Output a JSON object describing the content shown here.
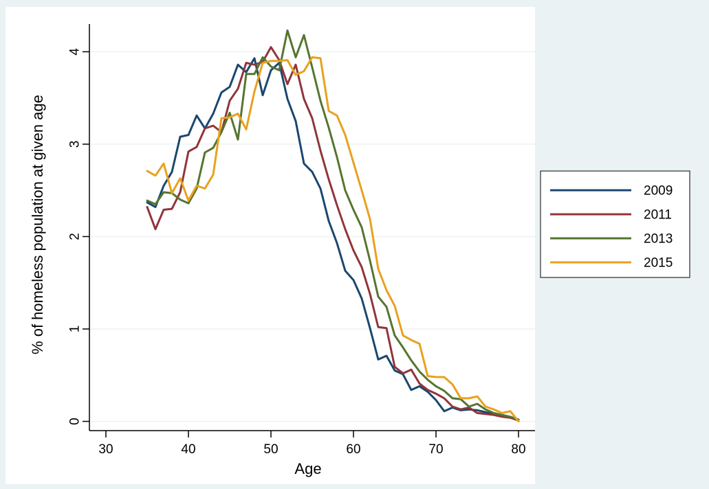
{
  "chart_data": {
    "type": "line",
    "title": "",
    "xlabel": "Age",
    "ylabel": "% of homeless population at given age",
    "xlim": [
      28,
      82
    ],
    "ylim": [
      -0.1,
      4.3
    ],
    "xticks": [
      30,
      40,
      50,
      60,
      70,
      80
    ],
    "yticks": [
      0,
      1,
      2,
      3,
      4
    ],
    "x_tick_labels": [
      "30",
      "40",
      "50",
      "60",
      "70",
      "80"
    ],
    "y_tick_labels": [
      "0",
      "1",
      "2",
      "3",
      "4"
    ],
    "grid": "horizontal",
    "legend_position": "right",
    "x": [
      35,
      36,
      37,
      38,
      39,
      40,
      41,
      42,
      43,
      44,
      45,
      46,
      47,
      48,
      49,
      50,
      51,
      52,
      53,
      54,
      55,
      56,
      57,
      58,
      59,
      60,
      61,
      62,
      63,
      64,
      65,
      66,
      67,
      68,
      69,
      70,
      71,
      72,
      73,
      74,
      75,
      76,
      77,
      78,
      79,
      80
    ],
    "series": [
      {
        "name": "2009",
        "color": "#1a476f",
        "values": [
          2.37,
          2.32,
          2.55,
          2.7,
          3.08,
          3.1,
          3.31,
          3.17,
          3.33,
          3.56,
          3.62,
          3.86,
          3.78,
          3.93,
          3.53,
          3.8,
          3.88,
          3.49,
          3.25,
          2.79,
          2.7,
          2.52,
          2.17,
          1.93,
          1.63,
          1.53,
          1.33,
          1.01,
          0.67,
          0.71,
          0.55,
          0.51,
          0.34,
          0.38,
          0.32,
          0.23,
          0.11,
          0.15,
          0.12,
          0.13,
          0.12,
          0.1,
          0.08,
          0.06,
          0.04,
          0.02
        ]
      },
      {
        "name": "2011",
        "color": "#90353b",
        "values": [
          2.32,
          2.08,
          2.29,
          2.3,
          2.48,
          2.92,
          2.97,
          3.17,
          3.2,
          3.13,
          3.47,
          3.6,
          3.88,
          3.86,
          3.89,
          4.05,
          3.91,
          3.65,
          3.86,
          3.49,
          3.28,
          2.93,
          2.62,
          2.34,
          2.08,
          1.85,
          1.67,
          1.38,
          1.02,
          1.01,
          0.59,
          0.52,
          0.56,
          0.41,
          0.34,
          0.3,
          0.25,
          0.16,
          0.13,
          0.15,
          0.09,
          0.08,
          0.07,
          0.05,
          0.04,
          0.01
        ]
      },
      {
        "name": "2013",
        "color": "#55752f",
        "values": [
          2.39,
          2.35,
          2.48,
          2.47,
          2.4,
          2.36,
          2.52,
          2.91,
          2.96,
          3.13,
          3.34,
          3.05,
          3.76,
          3.76,
          3.94,
          3.84,
          3.8,
          4.23,
          3.94,
          4.18,
          3.83,
          3.47,
          3.18,
          2.86,
          2.5,
          2.29,
          2.1,
          1.74,
          1.35,
          1.24,
          0.93,
          0.8,
          0.66,
          0.54,
          0.45,
          0.38,
          0.33,
          0.25,
          0.24,
          0.16,
          0.19,
          0.13,
          0.09,
          0.07,
          0.05,
          0.02
        ]
      },
      {
        "name": "2015",
        "color": "#e8a11e",
        "values": [
          2.71,
          2.66,
          2.79,
          2.47,
          2.63,
          2.39,
          2.55,
          2.52,
          2.67,
          3.28,
          3.29,
          3.33,
          3.16,
          3.57,
          3.88,
          3.9,
          3.9,
          3.91,
          3.75,
          3.79,
          3.94,
          3.93,
          3.36,
          3.31,
          3.1,
          2.8,
          2.5,
          2.19,
          1.65,
          1.42,
          1.25,
          0.93,
          0.88,
          0.84,
          0.49,
          0.48,
          0.48,
          0.4,
          0.25,
          0.25,
          0.27,
          0.16,
          0.13,
          0.09,
          0.11,
          0.0
        ]
      }
    ]
  }
}
